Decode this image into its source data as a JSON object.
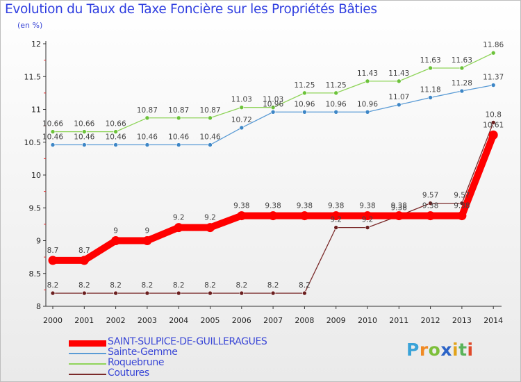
{
  "header": {
    "title": "Evolution du Taux de Taxe Foncière sur les Propriétés Bâties",
    "subtitle": "(en %)"
  },
  "logo": {
    "letters": [
      "P",
      "r",
      "o",
      "x",
      "i",
      "t",
      "i"
    ],
    "colors": [
      "#3aa3d8",
      "#f08a24",
      "#7cbf3a",
      "#2b63c7",
      "#e2a31b",
      "#5ab35a",
      "#e04a2a"
    ]
  },
  "chart_data": {
    "type": "line",
    "title": "Evolution du Taux de Taxe Foncière sur les Propriétés Bâties",
    "ylabel": "(en %)",
    "x": [
      "2000",
      "2001",
      "2002",
      "2003",
      "2004",
      "2005",
      "2006",
      "2007",
      "2008",
      "2009",
      "2010",
      "2011",
      "2012",
      "2013",
      "2014"
    ],
    "ylim": [
      8,
      12
    ],
    "yticks": [
      "8",
      "8.5",
      "9",
      "9.5",
      "10",
      "10.5",
      "11",
      "11.5",
      "12"
    ],
    "grid": false,
    "legend_position": "bottom-left",
    "series": [
      {
        "name": "SAINT-SULPICE-DE-GUILLERAGUES",
        "color": "#ff0000",
        "bold": true,
        "values": [
          8.7,
          8.7,
          9,
          9,
          9.2,
          9.2,
          9.38,
          9.38,
          9.38,
          9.38,
          9.38,
          9.38,
          9.38,
          9.38,
          10.61
        ],
        "labels": [
          "8.7",
          "8.7",
          "9",
          "9",
          "9.2",
          "9.2",
          "9.38",
          "9.38",
          "9.38",
          "9.38",
          "9.38",
          "9.38",
          "9.38",
          "9.38",
          "10.61"
        ]
      },
      {
        "name": "Sainte-Gemme",
        "color": "#5a9bd5",
        "marker": "#3d86c6",
        "values": [
          10.46,
          10.46,
          10.46,
          10.46,
          10.46,
          10.46,
          10.72,
          10.96,
          10.96,
          10.96,
          10.96,
          11.07,
          11.18,
          11.28,
          11.37
        ],
        "labels": [
          "10.46",
          "10.46",
          "10.46",
          "10.46",
          "10.46",
          "10.46",
          "10.72",
          "10.96",
          "10.96",
          "10.96",
          "10.96",
          "11.07",
          "11.18",
          "11.28",
          "11.37"
        ]
      },
      {
        "name": "Roquebrune",
        "color": "#8fd45a",
        "marker": "#6cc23a",
        "values": [
          10.66,
          10.66,
          10.66,
          10.87,
          10.87,
          10.87,
          11.03,
          11.03,
          11.25,
          11.25,
          11.43,
          11.43,
          11.63,
          11.63,
          11.86
        ],
        "labels": [
          "10.66",
          "10.66",
          "10.66",
          "10.87",
          "10.87",
          "10.87",
          "11.03",
          "11.03",
          "11.25",
          "11.25",
          "11.43",
          "11.43",
          "11.63",
          "11.63",
          "11.86"
        ]
      },
      {
        "name": "Coutures",
        "color": "#7a2a2a",
        "marker": "#6b1f1f",
        "values": [
          8.2,
          8.2,
          8.2,
          8.2,
          8.2,
          8.2,
          8.2,
          8.2,
          8.2,
          9.2,
          9.2,
          9.38,
          9.57,
          9.57,
          10.8
        ],
        "labels": [
          "8.2",
          "8.2",
          "8.2",
          "8.2",
          "8.2",
          "8.2",
          "8.2",
          "8.2",
          "8.2",
          "9.2",
          "9.2",
          "9.38",
          "9.57",
          "9.57",
          "10.8"
        ]
      }
    ]
  }
}
